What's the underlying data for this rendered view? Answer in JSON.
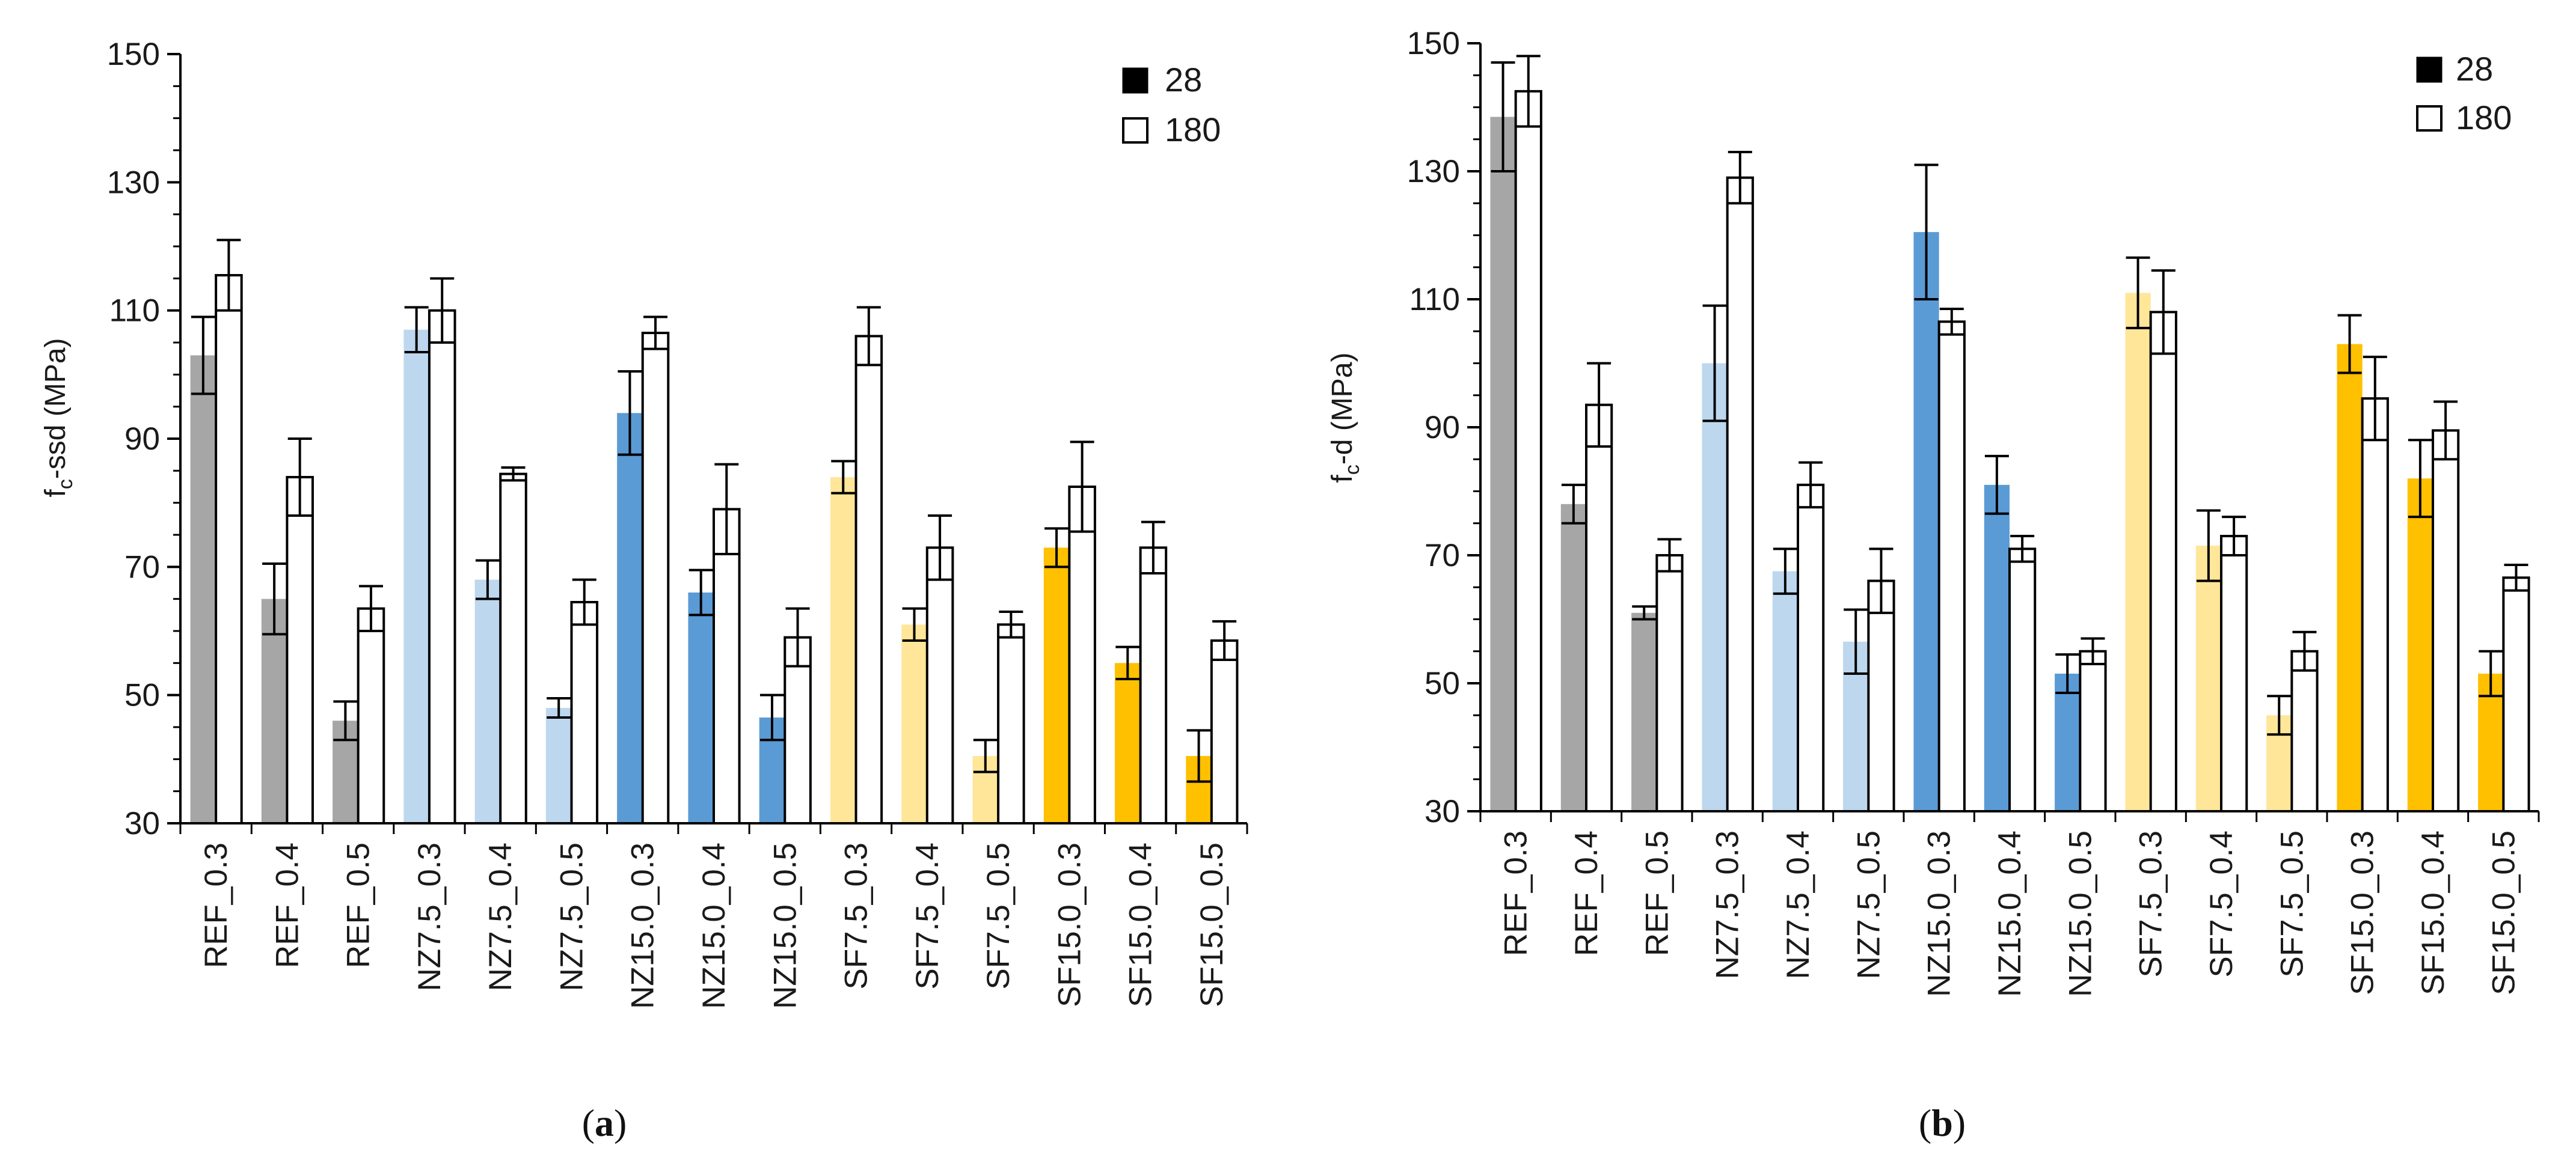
{
  "colors": {
    "REF": "#a6a6a6",
    "NZ7.5": "#bdd7ee",
    "NZ15.0": "#5b9bd5",
    "SF7.5": "#ffe699",
    "SF15.0": "#ffc000",
    "bar180": "#ffffff",
    "legend28": "#000000",
    "stroke": "#000000"
  },
  "legend": {
    "series28": "28",
    "series180": "180"
  },
  "chart_data": [
    {
      "panel": "a",
      "panel_label_paren_open": "(",
      "panel_label_letter": "a",
      "panel_label_paren_close": ")",
      "type": "bar",
      "ylabel_main": "f",
      "ylabel_sub": "c",
      "ylabel_rest": "-ssd  (MPa)",
      "ylim": [
        30,
        150
      ],
      "yticks": [
        30,
        50,
        70,
        90,
        110,
        130,
        150
      ],
      "legend_position": "top-right",
      "categories": [
        "REF_0.3",
        "REF_0.4",
        "REF_0.5",
        "NZ7.5_0.3",
        "NZ7.5_0.4",
        "NZ7.5_0.5",
        "NZ15.0_0.3",
        "NZ15.0_0.4",
        "NZ15.0_0.5",
        "SF7.5_0.3",
        "SF7.5_0.4",
        "SF7.5_0.5",
        "SF15.0_0.3",
        "SF15.0_0.4",
        "SF15.0_0.5"
      ],
      "series": [
        {
          "name": "28",
          "values": [
            103,
            65,
            46,
            107,
            68,
            48,
            94,
            66,
            46.5,
            84,
            61,
            40.5,
            73,
            55,
            40.5
          ],
          "errors": [
            6,
            5.5,
            3,
            3.5,
            3,
            1.5,
            6.5,
            3.5,
            3.5,
            2.5,
            2.5,
            2.5,
            3,
            2.5,
            4
          ]
        },
        {
          "name": "180",
          "values": [
            115.5,
            84,
            63.5,
            110,
            84.5,
            64.5,
            106.5,
            79,
            59,
            106,
            73,
            61,
            82.5,
            73,
            58.5
          ],
          "errors": [
            5.5,
            6,
            3.5,
            5,
            1,
            3.5,
            2.5,
            7,
            4.5,
            4.5,
            5,
            2,
            7,
            4,
            3
          ]
        }
      ]
    },
    {
      "panel": "b",
      "panel_label_paren_open": "(",
      "panel_label_letter": "b",
      "panel_label_paren_close": ")",
      "type": "bar",
      "ylabel_main": "f",
      "ylabel_sub": "c",
      "ylabel_rest": "-d  (MPa)",
      "ylim": [
        30,
        150
      ],
      "yticks": [
        30,
        50,
        70,
        90,
        110,
        130,
        150
      ],
      "legend_position": "top-right",
      "categories": [
        "REF_0.3",
        "REF_0.4",
        "REF_0.5",
        "NZ7.5_0.3",
        "NZ7.5_0.4",
        "NZ7.5_0.5",
        "NZ15.0_0.3",
        "NZ15.0_0.4",
        "NZ15.0_0.5",
        "SF7.5_0.3",
        "SF7.5_0.4",
        "SF7.5_0.5",
        "SF15.0_0.3",
        "SF15.0_0.4",
        "SF15.0_0.5"
      ],
      "series": [
        {
          "name": "28",
          "values": [
            138.5,
            78,
            61,
            100,
            67.5,
            56.5,
            120.5,
            81,
            51.5,
            111,
            71.5,
            45,
            103,
            82,
            51.5
          ],
          "errors": [
            8.5,
            3,
            1,
            9,
            3.5,
            5,
            10.5,
            4.5,
            3,
            5.5,
            5.5,
            3,
            4.5,
            6,
            3.5
          ]
        },
        {
          "name": "180",
          "values": [
            142.5,
            93.5,
            70,
            129,
            81,
            66,
            106.5,
            71,
            55,
            108,
            73,
            55,
            94.5,
            89.5,
            66.5
          ],
          "errors": [
            5.5,
            6.5,
            2.5,
            4,
            3.5,
            5,
            2,
            2,
            2,
            6.5,
            3,
            3,
            6.5,
            4.5,
            2
          ]
        }
      ]
    }
  ]
}
